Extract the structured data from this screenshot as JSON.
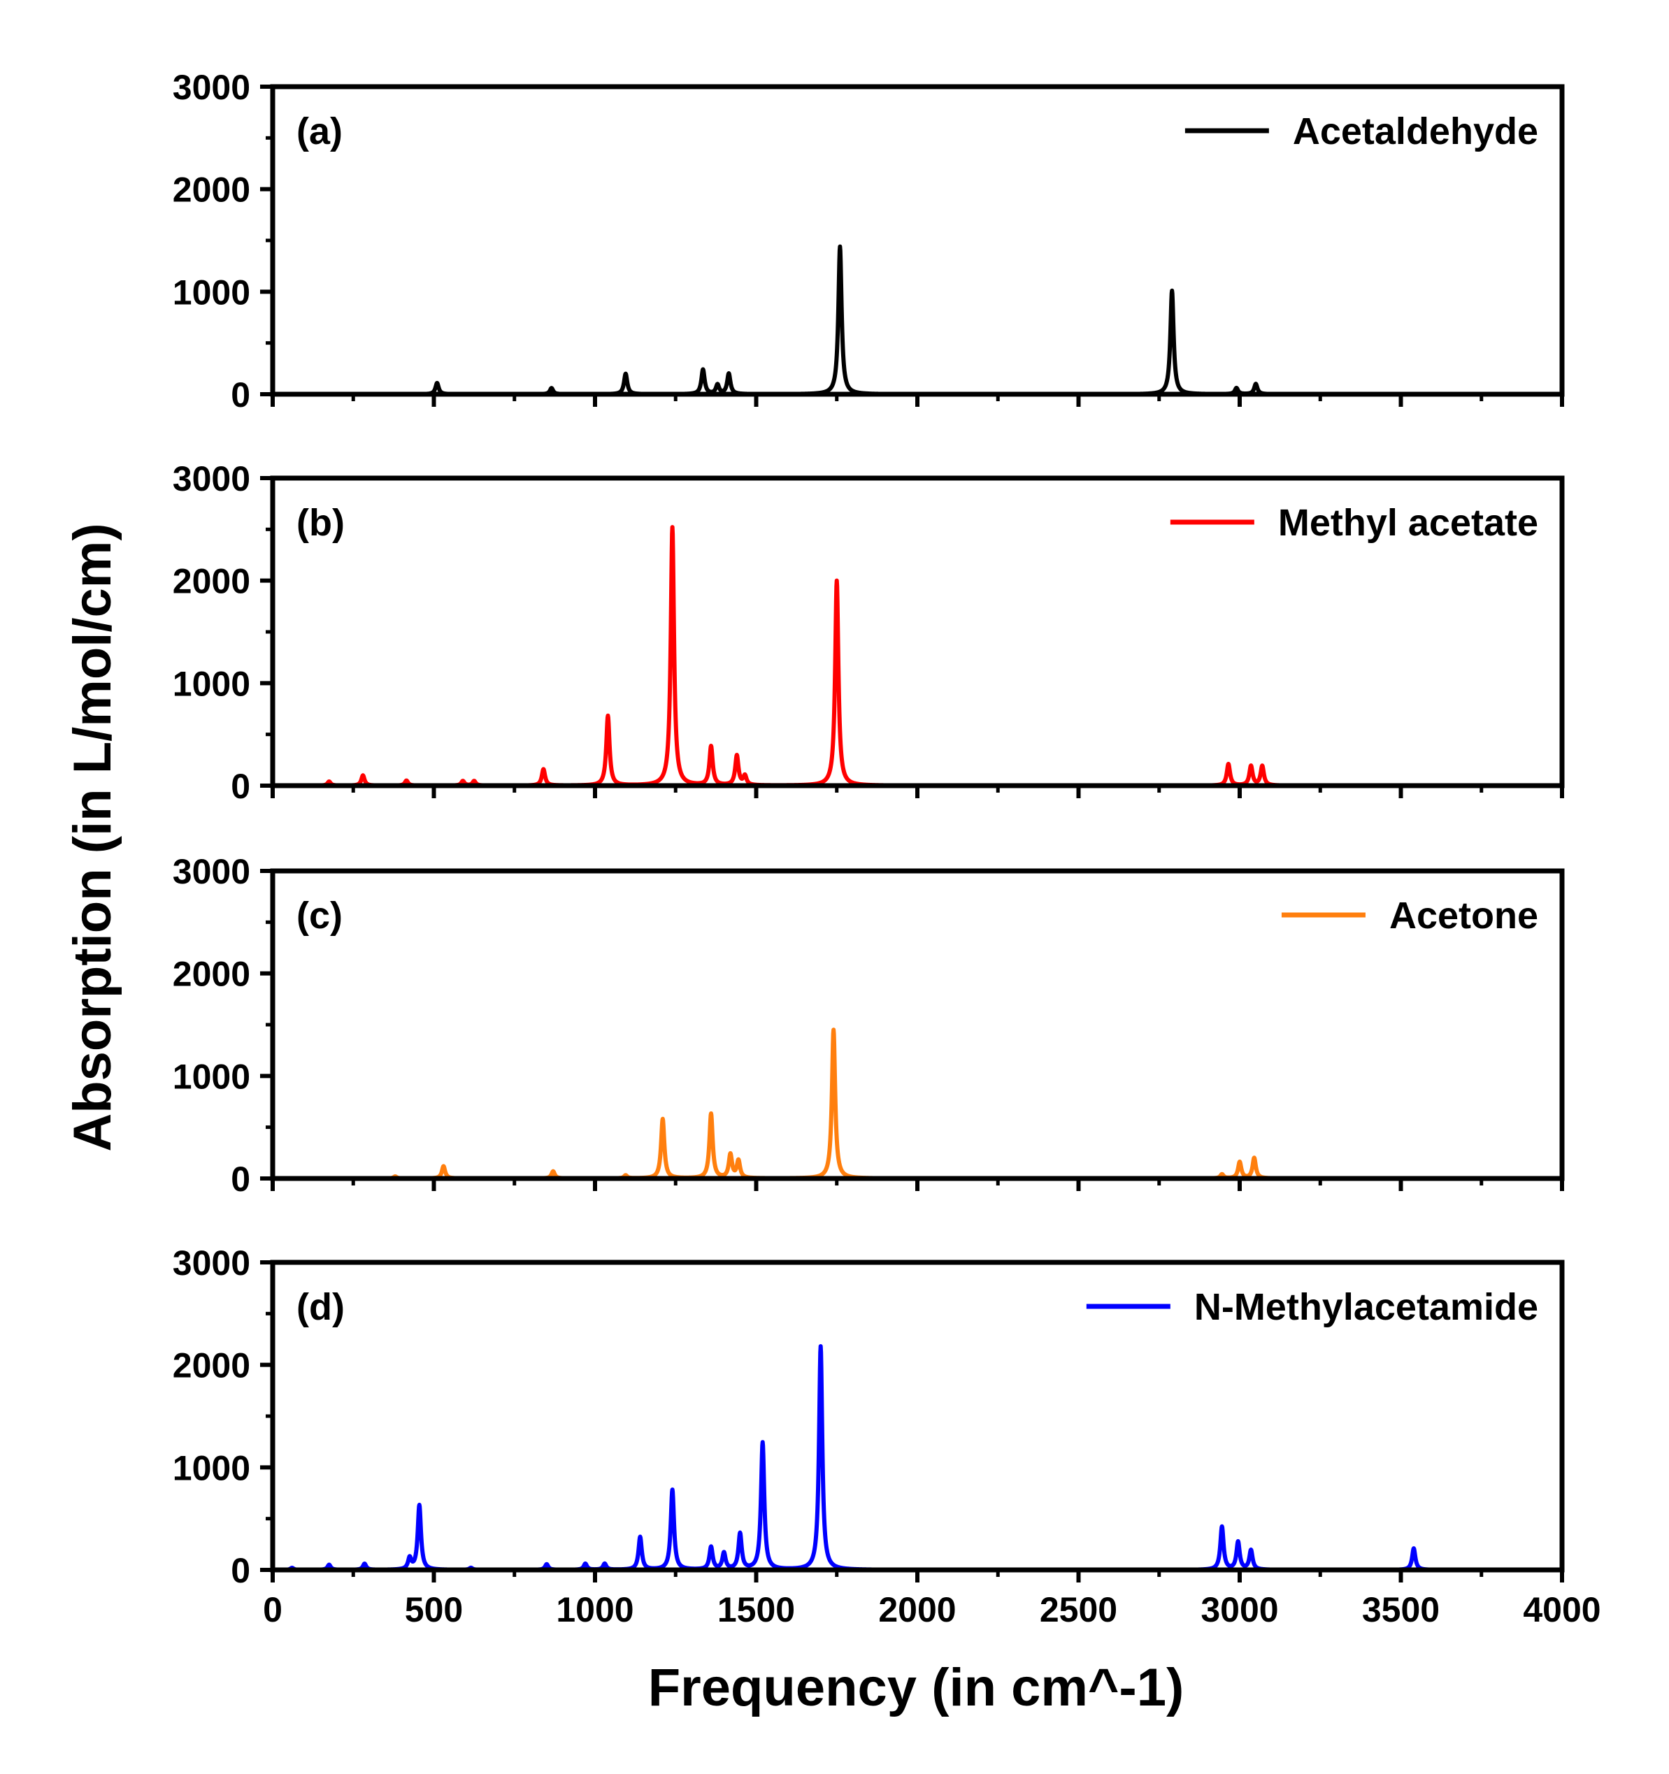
{
  "chart_data": {
    "type": "line",
    "xlabel": "Frequency (in cm^-1)",
    "ylabel": "Absorption (in L/mol/cm)",
    "xlim": [
      0,
      4000
    ],
    "ylim": [
      0,
      3000
    ],
    "x_ticks": [
      "0",
      "500",
      "1000",
      "1500",
      "2000",
      "2500",
      "3000",
      "3500",
      "4000"
    ],
    "y_ticks": [
      "0",
      "1000",
      "2000",
      "3000"
    ],
    "grid": false,
    "legend_placement": "top-right",
    "panels": [
      {
        "label": "(a)",
        "series_name": "Acetaldehyde",
        "color": "#000000",
        "peaks": [
          {
            "x": 510,
            "y": 110
          },
          {
            "x": 865,
            "y": 60
          },
          {
            "x": 1095,
            "y": 200
          },
          {
            "x": 1335,
            "y": 240
          },
          {
            "x": 1380,
            "y": 90
          },
          {
            "x": 1415,
            "y": 200
          },
          {
            "x": 1760,
            "y": 1440
          },
          {
            "x": 2790,
            "y": 1010
          },
          {
            "x": 2990,
            "y": 60
          },
          {
            "x": 3050,
            "y": 100
          }
        ]
      },
      {
        "label": "(b)",
        "series_name": "Methyl acetate",
        "color": "#ff0000",
        "peaks": [
          {
            "x": 175,
            "y": 40
          },
          {
            "x": 280,
            "y": 100
          },
          {
            "x": 415,
            "y": 50
          },
          {
            "x": 590,
            "y": 45
          },
          {
            "x": 625,
            "y": 45
          },
          {
            "x": 840,
            "y": 160
          },
          {
            "x": 1040,
            "y": 680
          },
          {
            "x": 1240,
            "y": 2520
          },
          {
            "x": 1360,
            "y": 380
          },
          {
            "x": 1440,
            "y": 290
          },
          {
            "x": 1465,
            "y": 90
          },
          {
            "x": 1750,
            "y": 2000
          },
          {
            "x": 2965,
            "y": 210
          },
          {
            "x": 3035,
            "y": 190
          },
          {
            "x": 3070,
            "y": 190
          }
        ]
      },
      {
        "label": "(c)",
        "series_name": "Acetone",
        "color": "#ff7f0e",
        "peaks": [
          {
            "x": 380,
            "y": 20
          },
          {
            "x": 530,
            "y": 120
          },
          {
            "x": 870,
            "y": 70
          },
          {
            "x": 1095,
            "y": 30
          },
          {
            "x": 1210,
            "y": 580
          },
          {
            "x": 1360,
            "y": 630
          },
          {
            "x": 1420,
            "y": 230
          },
          {
            "x": 1445,
            "y": 170
          },
          {
            "x": 1740,
            "y": 1450
          },
          {
            "x": 2945,
            "y": 40
          },
          {
            "x": 3000,
            "y": 160
          },
          {
            "x": 3045,
            "y": 200
          }
        ]
      },
      {
        "label": "(d)",
        "series_name": "N-Methylacetamide",
        "color": "#0000ff",
        "peaks": [
          {
            "x": 60,
            "y": 20
          },
          {
            "x": 175,
            "y": 50
          },
          {
            "x": 285,
            "y": 60
          },
          {
            "x": 425,
            "y": 110
          },
          {
            "x": 455,
            "y": 630
          },
          {
            "x": 615,
            "y": 20
          },
          {
            "x": 850,
            "y": 55
          },
          {
            "x": 970,
            "y": 60
          },
          {
            "x": 1030,
            "y": 60
          },
          {
            "x": 1140,
            "y": 320
          },
          {
            "x": 1240,
            "y": 780
          },
          {
            "x": 1360,
            "y": 220
          },
          {
            "x": 1400,
            "y": 160
          },
          {
            "x": 1450,
            "y": 350
          },
          {
            "x": 1520,
            "y": 1240
          },
          {
            "x": 1700,
            "y": 2180
          },
          {
            "x": 2945,
            "y": 420
          },
          {
            "x": 2995,
            "y": 270
          },
          {
            "x": 3035,
            "y": 190
          },
          {
            "x": 3540,
            "y": 210
          }
        ]
      }
    ]
  }
}
